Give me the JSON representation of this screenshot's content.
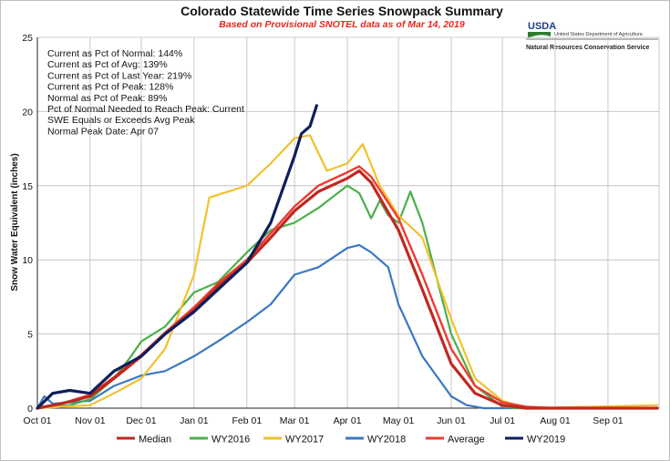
{
  "header": {
    "title": "Colorado Statewide Time Series Snowpack Summary",
    "subtitle": "Based on Provisional SNOTEL data as of Mar 14, 2019"
  },
  "agency": {
    "logo_text": "USDA",
    "department": "United States Department of Agriculture",
    "service": "Natural Resources Conservation Service"
  },
  "stats": [
    "Current  as Pct of Normal: 144%",
    "Current  as Pct of Avg: 139%",
    "Current  as Pct of Last Year: 219%",
    "Current  as Pct of Peak: 128%",
    "Normal  as Pct of Peak: 89%",
    "Pct of Normal Needed  to Reach Peak: Current",
    "SWE Equals or Exceeds Avg Peak",
    "Normal Peak Date: Apr 07"
  ],
  "colors": {
    "Median": "#c0281f",
    "WY2016": "#4caf4a",
    "WY2017": "#f2c12e",
    "WY2018": "#3a78c3",
    "Average": "#ee3b2f",
    "WY2019": "#0e1f5b"
  },
  "chart_data": {
    "type": "line",
    "title": "Colorado Statewide Time Series Snowpack Summary",
    "subtitle": "Based on Provisional SNOTEL data as of Mar 14, 2019",
    "xlabel": "",
    "ylabel": "Snow Water Equivalent (inches)",
    "ylim": [
      0,
      25
    ],
    "yticks": [
      "0",
      "5",
      "10",
      "15",
      "20",
      "25"
    ],
    "xlim": [
      "Oct 01",
      "Sep 30"
    ],
    "xticks": [
      "Oct 01",
      "Nov 01",
      "Dec 01",
      "Jan 01",
      "Feb 01",
      "Mar 01",
      "Apr 01",
      "May 01",
      "Jun 01",
      "Jul 01",
      "Aug 01",
      "Sep 01"
    ],
    "grid": true,
    "legend": "bottom",
    "series": [
      {
        "name": "Median",
        "x": [
          "Oct 01",
          "Oct 15",
          "Nov 01",
          "Nov 15",
          "Dec 01",
          "Dec 15",
          "Jan 01",
          "Jan 15",
          "Feb 01",
          "Feb 15",
          "Mar 01",
          "Mar 15",
          "Apr 01",
          "Apr 08",
          "Apr 15",
          "May 01",
          "May 15",
          "Jun 01",
          "Jun 15",
          "Jul 01",
          "Jul 15",
          "Sep 30"
        ],
        "values": [
          0,
          0.3,
          0.8,
          2.0,
          3.5,
          5.0,
          6.6,
          8.2,
          9.8,
          11.5,
          13.3,
          14.6,
          15.5,
          16.0,
          15.2,
          12.0,
          8.0,
          3.0,
          1.0,
          0.2,
          0,
          0
        ]
      },
      {
        "name": "WY2016",
        "x": [
          "Oct 01",
          "Oct 20",
          "Nov 01",
          "Nov 15",
          "Nov 25",
          "Dec 01",
          "Dec 15",
          "Jan 01",
          "Jan 15",
          "Feb 01",
          "Feb 15",
          "Mar 01",
          "Mar 15",
          "Apr 01",
          "Apr 08",
          "Apr 15",
          "Apr 20",
          "Apr 25",
          "May 01",
          "May 08",
          "May 15",
          "Jun 01",
          "Jun 15",
          "Jul 01",
          "Jul 10",
          "Sep 30"
        ],
        "values": [
          0,
          0.2,
          0.6,
          2.0,
          3.5,
          4.5,
          5.5,
          7.8,
          8.5,
          10.5,
          12.0,
          12.5,
          13.5,
          15.0,
          14.5,
          12.8,
          14.0,
          13.0,
          12.5,
          14.6,
          12.5,
          5.0,
          1.5,
          0.1,
          0,
          0
        ]
      },
      {
        "name": "WY2017",
        "x": [
          "Oct 01",
          "Nov 01",
          "Nov 15",
          "Dec 01",
          "Dec 15",
          "Jan 01",
          "Jan 10",
          "Feb 01",
          "Feb 15",
          "Mar 01",
          "Mar 10",
          "Mar 20",
          "Apr 01",
          "Apr 10",
          "Apr 20",
          "May 01",
          "May 15",
          "Jun 01",
          "Jun 15",
          "Jul 01",
          "Jul 15",
          "Sep 30"
        ],
        "values": [
          0,
          0.2,
          1.0,
          2.0,
          4.0,
          9.0,
          14.2,
          15.0,
          16.5,
          18.2,
          18.4,
          16.0,
          16.5,
          17.8,
          15.0,
          13.0,
          11.5,
          6.0,
          2.0,
          0.5,
          0,
          0.2
        ]
      },
      {
        "name": "WY2018",
        "x": [
          "Oct 01",
          "Oct 05",
          "Oct 10",
          "Nov 01",
          "Nov 15",
          "Dec 01",
          "Dec 15",
          "Jan 01",
          "Jan 15",
          "Feb 01",
          "Feb 15",
          "Mar 01",
          "Mar 15",
          "Apr 01",
          "Apr 08",
          "Apr 15",
          "Apr 25",
          "May 01",
          "May 15",
          "Jun 01",
          "Jun 10",
          "Jun 20",
          "Sep 30"
        ],
        "values": [
          0,
          0.8,
          0.3,
          0.5,
          1.5,
          2.2,
          2.5,
          3.5,
          4.5,
          5.8,
          7.0,
          9.0,
          9.5,
          10.8,
          11.0,
          10.5,
          9.5,
          7.0,
          3.5,
          0.8,
          0.2,
          0,
          0
        ]
      },
      {
        "name": "Average",
        "x": [
          "Oct 01",
          "Oct 15",
          "Nov 01",
          "Nov 15",
          "Dec 01",
          "Dec 15",
          "Jan 01",
          "Jan 15",
          "Feb 01",
          "Feb 15",
          "Mar 01",
          "Mar 15",
          "Apr 01",
          "Apr 08",
          "Apr 15",
          "May 01",
          "May 15",
          "Jun 01",
          "Jun 15",
          "Jul 01",
          "Jul 15",
          "Aug 01",
          "Sep 30"
        ],
        "values": [
          0,
          0.3,
          0.9,
          2.1,
          3.6,
          5.1,
          6.8,
          8.4,
          10.0,
          11.8,
          13.6,
          15.0,
          15.9,
          16.3,
          15.6,
          12.8,
          9.0,
          4.0,
          1.5,
          0.4,
          0.1,
          0,
          0
        ]
      },
      {
        "name": "WY2019",
        "x": [
          "Oct 01",
          "Oct 10",
          "Oct 20",
          "Nov 01",
          "Nov 15",
          "Dec 01",
          "Dec 15",
          "Jan 01",
          "Jan 15",
          "Feb 01",
          "Feb 15",
          "Mar 01",
          "Mar 05",
          "Mar 10",
          "Mar 14"
        ],
        "values": [
          0,
          1.0,
          1.2,
          1.0,
          2.5,
          3.5,
          5.0,
          6.5,
          8.0,
          9.8,
          12.5,
          17.0,
          18.5,
          19.0,
          20.4
        ]
      }
    ]
  }
}
